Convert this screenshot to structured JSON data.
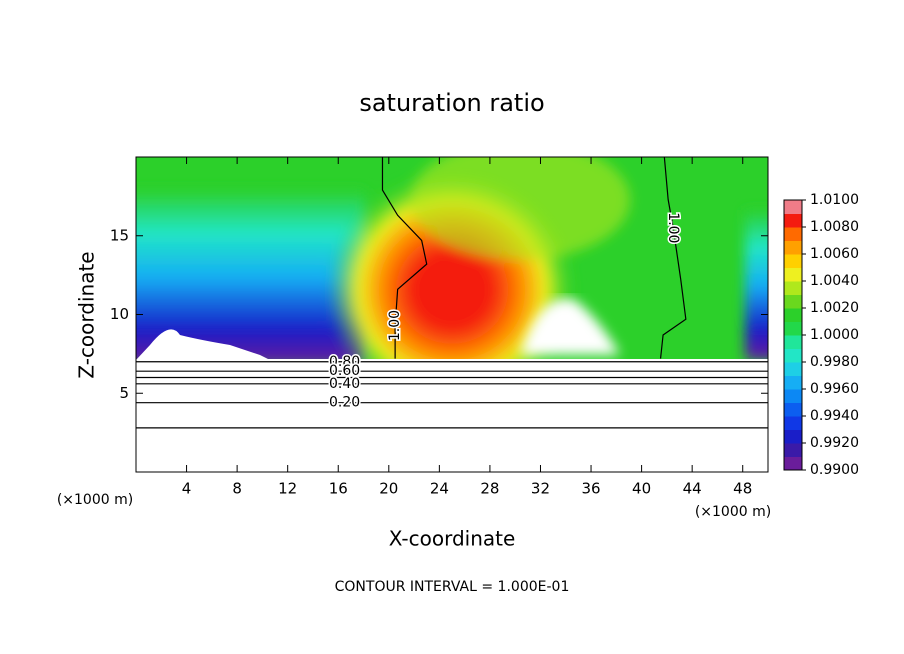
{
  "chart_data": {
    "type": "contour",
    "title": "saturation ratio",
    "x_label": "X-coordinate",
    "y_label": "Z-coordinate",
    "x_unit_left": "(×1000 m)",
    "x_unit_right": "(×1000 m)",
    "footer": "CONTOUR INTERVAL = 1.000E-01",
    "xlim": [
      0,
      50
    ],
    "ylim": [
      0,
      20
    ],
    "xticks": [
      4,
      8,
      12,
      16,
      20,
      24,
      28,
      32,
      36,
      40,
      44,
      48
    ],
    "yticks": [
      5,
      10,
      15
    ],
    "colorbar": {
      "lim": [
        0.99,
        1.01
      ],
      "ticks": [
        {
          "value": 0.99,
          "label": "0.9900"
        },
        {
          "value": 0.992,
          "label": "0.9920"
        },
        {
          "value": 0.994,
          "label": "0.9940"
        },
        {
          "value": 0.996,
          "label": "0.9960"
        },
        {
          "value": 0.998,
          "label": "0.9980"
        },
        {
          "value": 1.0,
          "label": "1.0000"
        },
        {
          "value": 1.002,
          "label": "1.0020"
        },
        {
          "value": 1.004,
          "label": "1.0040"
        },
        {
          "value": 1.006,
          "label": "1.0060"
        },
        {
          "value": 1.008,
          "label": "1.0080"
        },
        {
          "value": 1.01,
          "label": "1.0100"
        }
      ],
      "colors": [
        "#6a1d9b",
        "#3a1aa8",
        "#1a1ec8",
        "#1038e6",
        "#0c5ef0",
        "#0c88f4",
        "#16aef4",
        "#1ecfe6",
        "#22e6c6",
        "#20e69a",
        "#22d84a",
        "#2cd02a",
        "#6ad81e",
        "#b0e81c",
        "#eef020",
        "#ffd000",
        "#ffa000",
        "#ff6a00",
        "#f41c10",
        "#f07c88"
      ]
    },
    "contours": [
      {
        "label": "1.00",
        "x": [
          19.5,
          19.5,
          20.7,
          22.6,
          23.0,
          20.7,
          20.5,
          20.5
        ],
        "y": [
          20,
          17.9,
          16.3,
          14.7,
          13.2,
          11.6,
          9.3,
          7.2
        ]
      },
      {
        "label": "1.00",
        "x": [
          41.8,
          42.1,
          42.5,
          43.1,
          43.5,
          41.7,
          41.5
        ],
        "y": [
          20,
          17.3,
          15.5,
          12.2,
          9.7,
          8.7,
          7.2
        ]
      },
      {
        "label": "0.80",
        "x": [
          0,
          16.5,
          50
        ],
        "y": [
          7.0,
          7.0,
          7.0
        ]
      },
      {
        "label": "0.60",
        "x": [
          0,
          16.5,
          50
        ],
        "y": [
          6.4,
          6.4,
          6.4
        ]
      },
      {
        "x": [
          0,
          16.5,
          50
        ],
        "y": [
          6.0,
          6.0,
          6.0
        ]
      },
      {
        "label": "0.40",
        "x": [
          0,
          16.5,
          50
        ],
        "y": [
          5.6,
          5.6,
          5.6
        ]
      },
      {
        "label": "0.20",
        "x": [
          0,
          16.5,
          50
        ],
        "y": [
          4.4,
          4.4,
          4.4
        ]
      },
      {
        "x": [
          0,
          16.5,
          50
        ],
        "y": [
          2.8,
          2.8,
          2.8
        ]
      }
    ]
  }
}
